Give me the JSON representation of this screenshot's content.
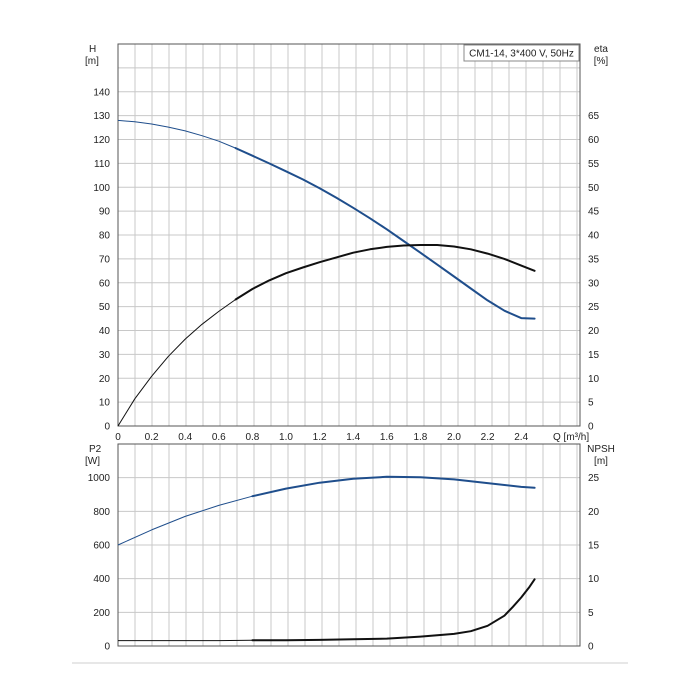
{
  "chart_data": [
    {
      "type": "line",
      "legend_box": "CM1-14, 3*400 V, 50Hz",
      "xlabel": "Q [m³/h]",
      "xlim": [
        0,
        2.75
      ],
      "xticks": [
        "0",
        "0.2",
        "0.4",
        "0.6",
        "0.8",
        "1.0",
        "1.2",
        "1.4",
        "1.6",
        "1.8",
        "2.0",
        "2.2",
        "2.4"
      ],
      "ylabel_left": {
        "name": "H",
        "unit": "[m]"
      },
      "ylim_left": [
        0,
        160
      ],
      "yticks_left": [
        "0",
        "10",
        "20",
        "30",
        "40",
        "50",
        "60",
        "70",
        "80",
        "90",
        "100",
        "110",
        "120",
        "130",
        "140"
      ],
      "ylabel_right": {
        "name": "eta",
        "unit": "[%]"
      },
      "ylim_right": [
        0,
        80
      ],
      "yticks_right": [
        "0",
        "5",
        "10",
        "15",
        "20",
        "25",
        "30",
        "35",
        "40",
        "45",
        "50",
        "55",
        "60",
        "65"
      ],
      "grid": true,
      "series": [
        {
          "axis": "left",
          "color": "#1f4e8c",
          "x": [
            0,
            0.1,
            0.2,
            0.3,
            0.4,
            0.5,
            0.6,
            0.7,
            0.8,
            0.9,
            1.0,
            1.1,
            1.2,
            1.3,
            1.4,
            1.5,
            1.6,
            1.7,
            1.8,
            1.9,
            2.0,
            2.1,
            2.2,
            2.3,
            2.4,
            2.48
          ],
          "y": [
            128,
            127.4,
            126.5,
            125.2,
            123.6,
            121.6,
            119.3,
            116.4,
            113.2,
            110,
            106.7,
            103.3,
            99.6,
            95.6,
            91.4,
            87,
            82.4,
            77.5,
            72.6,
            67.6,
            62.6,
            57.6,
            52.6,
            48.3,
            45.2,
            45
          ]
        },
        {
          "axis": "right",
          "color": "#111111",
          "x": [
            0,
            0.1,
            0.2,
            0.3,
            0.4,
            0.5,
            0.6,
            0.7,
            0.8,
            0.9,
            1.0,
            1.1,
            1.2,
            1.3,
            1.4,
            1.5,
            1.6,
            1.7,
            1.8,
            1.9,
            2.0,
            2.1,
            2.2,
            2.3,
            2.4,
            2.48
          ],
          "y": [
            0,
            5.7,
            10.4,
            14.6,
            18.2,
            21.3,
            24,
            26.5,
            28.7,
            30.5,
            32,
            33.2,
            34.3,
            35.3,
            36.3,
            37,
            37.5,
            37.8,
            37.9,
            37.9,
            37.6,
            37,
            36.1,
            35,
            33.6,
            32.5
          ]
        }
      ]
    },
    {
      "type": "line",
      "xlim": [
        0,
        2.75
      ],
      "ylabel_left": {
        "name": "P2",
        "unit": "[W]"
      },
      "ylim_left": [
        0,
        1200
      ],
      "yticks_left": [
        "0",
        "200",
        "400",
        "600",
        "800",
        "1000"
      ],
      "ylabel_right": {
        "name": "NPSH",
        "unit": "[m]"
      },
      "ylim_right": [
        0,
        30
      ],
      "yticks_right": [
        "0",
        "5",
        "10",
        "15",
        "20",
        "25"
      ],
      "grid": true,
      "series": [
        {
          "axis": "left",
          "color": "#1f4e8c",
          "x": [
            0,
            0.2,
            0.4,
            0.6,
            0.8,
            1.0,
            1.2,
            1.4,
            1.6,
            1.8,
            2.0,
            2.2,
            2.4,
            2.48
          ],
          "y": [
            600,
            690,
            770,
            835,
            890,
            935,
            970,
            993,
            1005,
            1003,
            990,
            968,
            945,
            940
          ]
        },
        {
          "axis": "right",
          "color": "#111111",
          "x": [
            0,
            0.2,
            0.4,
            0.6,
            0.8,
            1.0,
            1.2,
            1.4,
            1.6,
            1.8,
            2.0,
            2.1,
            2.2,
            2.3,
            2.35,
            2.4,
            2.45,
            2.48
          ],
          "y": [
            0.8,
            0.8,
            0.8,
            0.8,
            0.85,
            0.85,
            0.9,
            1,
            1.1,
            1.4,
            1.8,
            2.2,
            3,
            4.5,
            5.8,
            7.2,
            8.8,
            9.9
          ]
        }
      ]
    }
  ]
}
